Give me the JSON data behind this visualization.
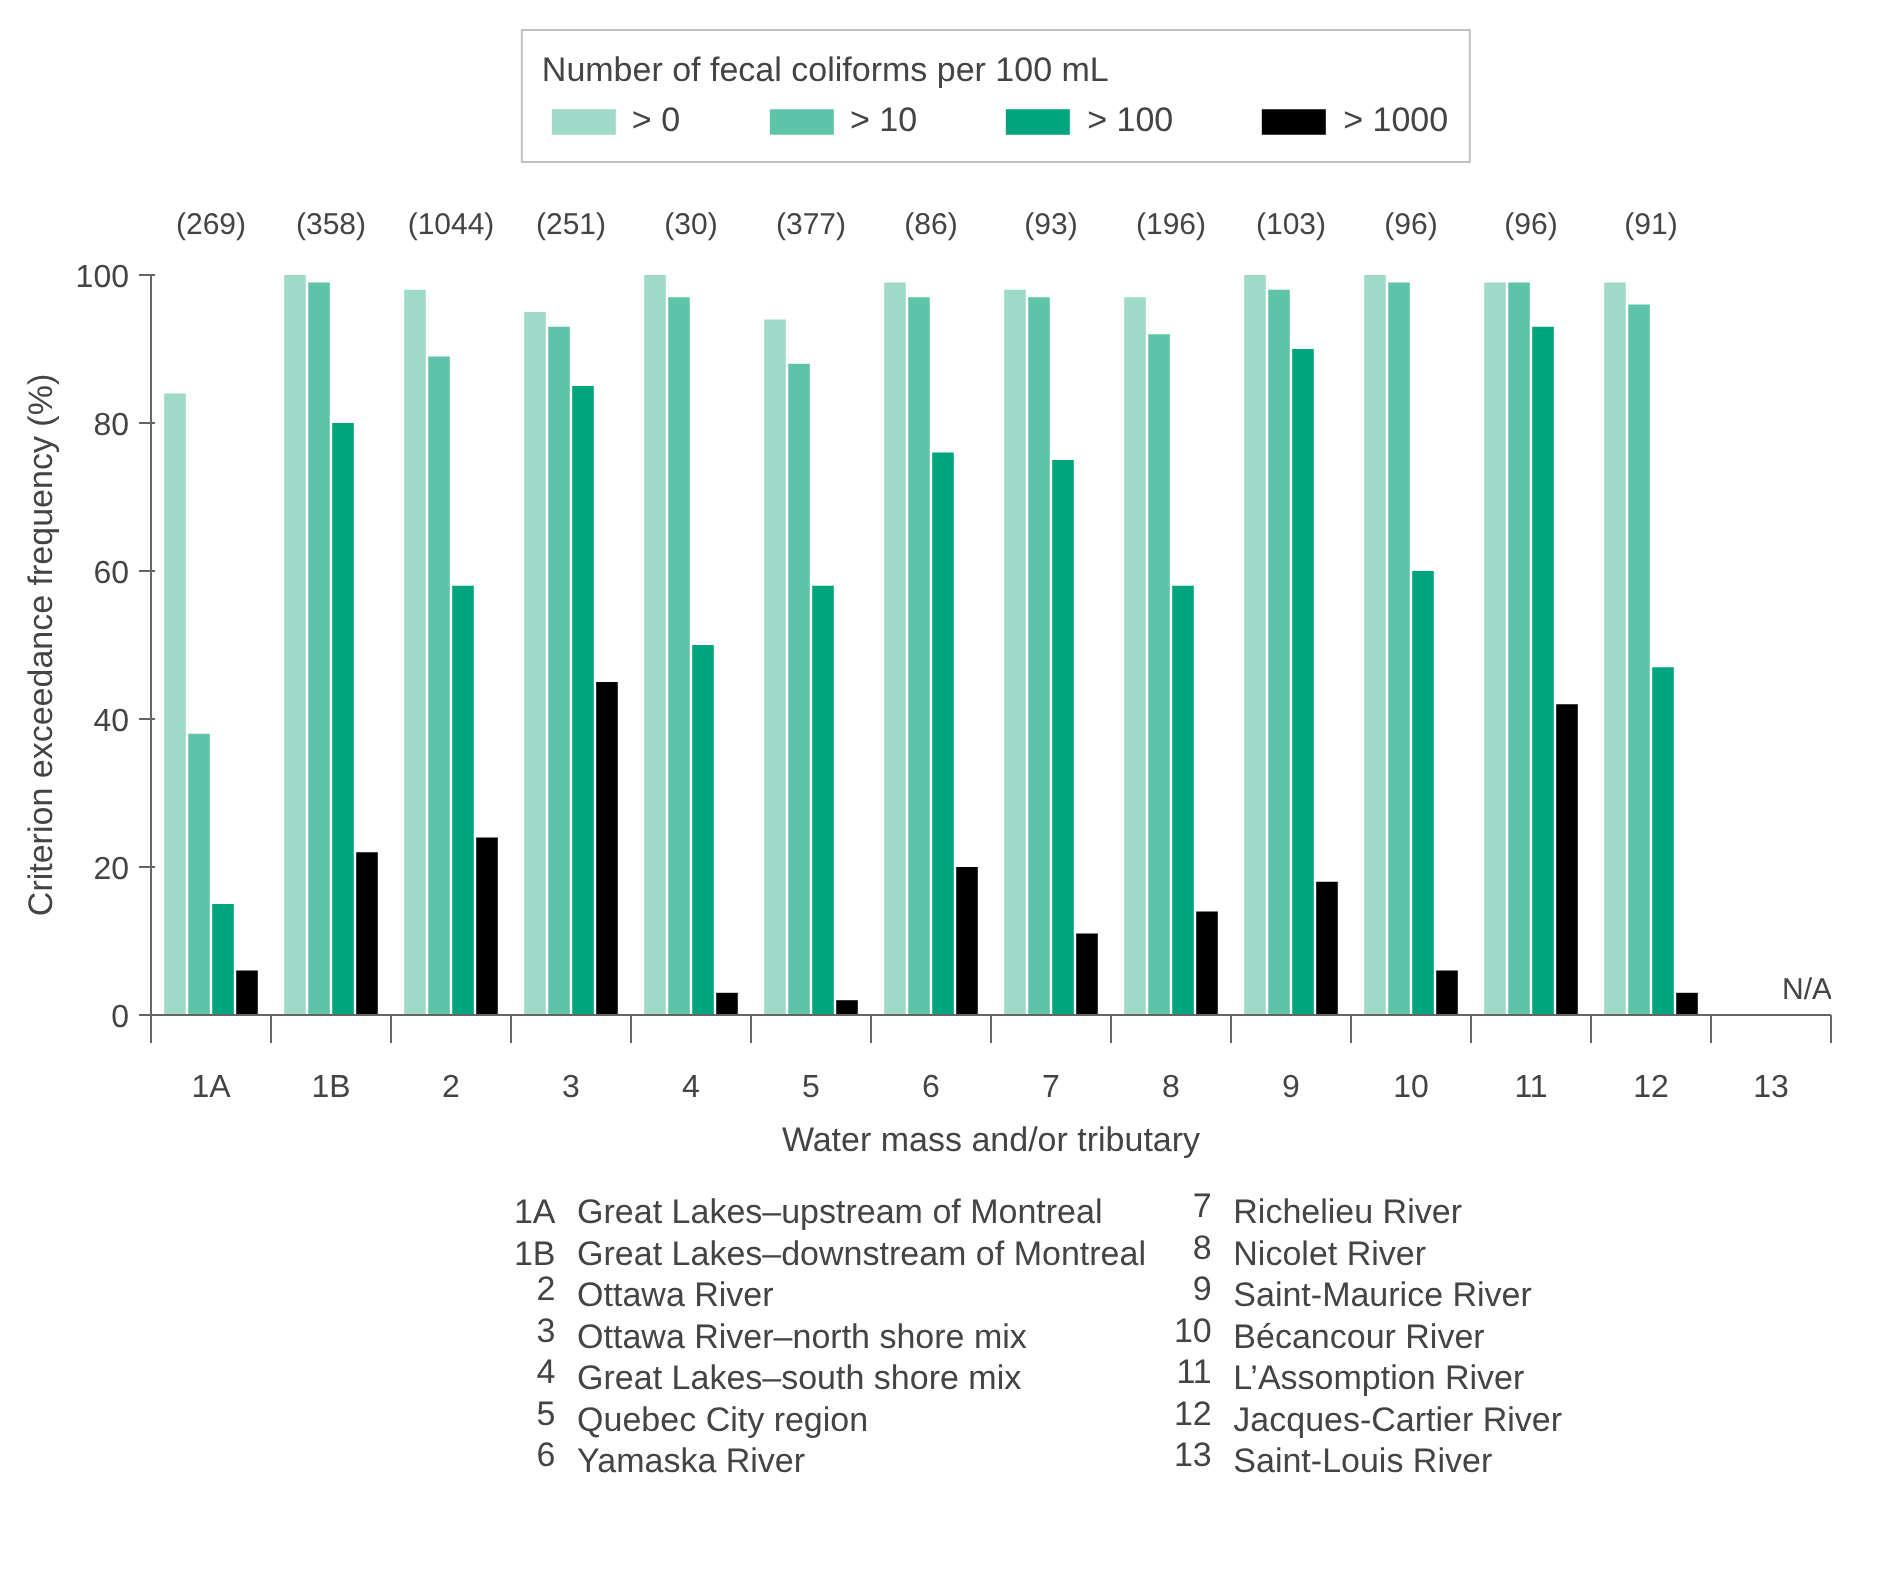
{
  "chart_data": {
    "type": "bar",
    "xlabel": "Water mass and/or tributary",
    "ylabel": "Criterion exceedance frequency (%)",
    "legend_title": "Number of fecal coliforms per 100 mL",
    "legend": "top",
    "categories": [
      "1A",
      "1B",
      "2",
      "3",
      "4",
      "5",
      "6",
      "7",
      "8",
      "9",
      "10",
      "11",
      "12",
      "13"
    ],
    "series": [
      {
        "name": "> 0",
        "color": "#9fd9c7",
        "values": [
          84,
          100,
          98,
          95,
          100,
          94,
          99,
          98,
          97,
          100,
          100,
          99,
          99,
          null
        ]
      },
      {
        "name": "> 10",
        "color": "#5fc3a8",
        "values": [
          38,
          99,
          89,
          93,
          97,
          88,
          97,
          97,
          92,
          98,
          99,
          99,
          96,
          null
        ]
      },
      {
        "name": "> 100",
        "color": "#00a57d",
        "values": [
          15,
          80,
          58,
          85,
          50,
          58,
          76,
          75,
          58,
          90,
          60,
          93,
          47,
          null
        ]
      },
      {
        "name": "> 1000",
        "color": "#000000",
        "values": [
          6,
          22,
          24,
          45,
          3,
          2,
          20,
          11,
          14,
          18,
          6,
          42,
          3,
          null
        ],
        "value_labels": [
          null,
          null,
          null,
          null,
          null,
          null,
          null,
          null,
          null,
          null,
          null,
          null,
          null,
          "N/A"
        ]
      }
    ],
    "ylim": [
      0,
      100
    ],
    "yticks": [
      0,
      20,
      40,
      60,
      80,
      100
    ],
    "grid": false,
    "annotations": [
      "(269)",
      "(358)",
      "(1044)",
      "(251)",
      "(30)",
      "(377)",
      "(86)",
      "(93)",
      "(196)",
      "(103)",
      "(96)",
      "(96)",
      "(91)",
      "1A Great Lakes–upstream of Montreal",
      "1B Great Lakes–downstream of Montreal",
      "2 Ottawa River",
      "3 Ottawa River–north shore mix",
      "4 Great Lakes–south shore mix",
      "5 Quebec City region",
      "6 Yamaska River",
      "7 Richelieu River",
      "8 Nicolet River",
      "9 Saint-Maurice River",
      "10 Bécancour River",
      "11 L’Assomption River",
      "12 Jacques-Cartier River",
      "13 Saint-Louis River"
    ]
  }
}
